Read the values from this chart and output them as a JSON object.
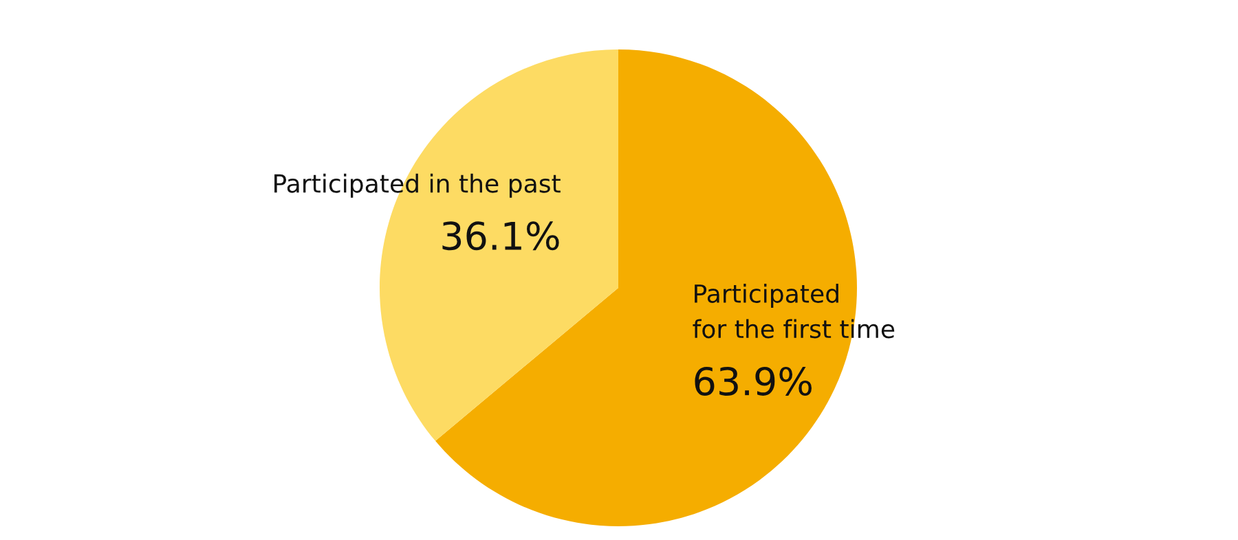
{
  "chart_data": {
    "type": "pie",
    "categories": [
      "Participated\nfor the first time",
      "Participated in the past"
    ],
    "values": [
      63.9,
      36.1
    ],
    "colors": [
      "#f5ad00",
      "#fddb63"
    ],
    "value_labels": [
      "63.9%",
      "36.1%"
    ],
    "legend": false
  }
}
